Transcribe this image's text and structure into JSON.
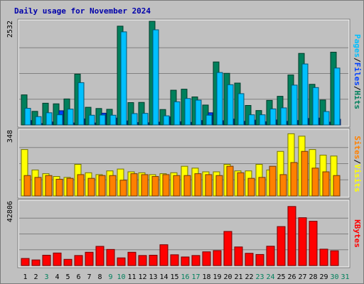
{
  "title": "Daily usage for November 2024",
  "colors": {
    "background": "#c0c0c0",
    "hits": "#00805c",
    "files": "#00c0ff",
    "pages": "#0040ff",
    "visits": "#ffff00",
    "sites": "#ff8000",
    "kbytes": "#ff0000",
    "weekend_label": "#00805c",
    "weekday_label": "#000000"
  },
  "chart_data": [
    {
      "type": "bar",
      "panel": "top",
      "ymax_label": "2532",
      "ylim": [
        0,
        2532
      ],
      "grid": true,
      "legend": [
        {
          "label": "Pages",
          "color": "#00c0ff"
        },
        {
          "label": "Files",
          "color": "#0040ff"
        },
        {
          "label": "Hits",
          "color": "#00805c"
        }
      ],
      "legend_separator": "/",
      "categories": [
        "1",
        "2",
        "3",
        "4",
        "5",
        "6",
        "7",
        "8",
        "9",
        "10",
        "11",
        "12",
        "13",
        "14",
        "15",
        "16",
        "17",
        "18",
        "19",
        "20",
        "21",
        "22",
        "23",
        "24",
        "25",
        "26",
        "27",
        "28",
        "29",
        "30",
        "31"
      ],
      "series": [
        {
          "name": "Hits",
          "color": "#00805c",
          "values": [
            740,
            335,
            535,
            520,
            640,
            1250,
            435,
            405,
            385,
            2430,
            550,
            555,
            2550,
            380,
            855,
            880,
            690,
            490,
            1550,
            1270,
            1030,
            480,
            355,
            605,
            705,
            1230,
            1760,
            1000,
            615,
            1790,
            0
          ]
        },
        {
          "name": "Files",
          "color": "#00c0ff",
          "values": [
            410,
            205,
            300,
            250,
            390,
            1040,
            240,
            245,
            240,
            2290,
            280,
            285,
            2340,
            225,
            570,
            650,
            610,
            240,
            1290,
            990,
            770,
            250,
            250,
            395,
            420,
            980,
            1500,
            920,
            330,
            1400,
            0
          ]
        },
        {
          "name": "Pages",
          "color": "#0040ff",
          "values": [
            110,
            35,
            75,
            350,
            50,
            150,
            50,
            290,
            170,
            100,
            60,
            55,
            70,
            200,
            80,
            65,
            110,
            300,
            105,
            145,
            90,
            120,
            80,
            125,
            90,
            110,
            160,
            170,
            70,
            140,
            0
          ]
        }
      ]
    },
    {
      "type": "bar",
      "panel": "middle",
      "ymax_label": "348",
      "ylim": [
        0,
        348
      ],
      "grid": true,
      "legend": [
        {
          "label": "Sites",
          "color": "#ff8000"
        },
        {
          "label": "Visits",
          "color": "#ffff00"
        }
      ],
      "legend_separator": "/",
      "categories": [
        "1",
        "2",
        "3",
        "4",
        "5",
        "6",
        "7",
        "8",
        "9",
        "10",
        "11",
        "12",
        "13",
        "14",
        "15",
        "16",
        "17",
        "18",
        "19",
        "20",
        "21",
        "22",
        "23",
        "24",
        "25",
        "26",
        "27",
        "28",
        "29",
        "30",
        "31"
      ],
      "series": [
        {
          "name": "Visits",
          "color": "#ffff00",
          "values": [
            250,
            140,
            120,
            105,
            100,
            170,
            125,
            115,
            135,
            145,
            130,
            125,
            115,
            120,
            125,
            160,
            150,
            130,
            130,
            170,
            135,
            135,
            170,
            140,
            240,
            335,
            322,
            250,
            220,
            215,
            0
          ]
        },
        {
          "name": "Sites",
          "color": "#ff8000",
          "values": [
            110,
            100,
            110,
            90,
            95,
            115,
            95,
            110,
            110,
            85,
            120,
            115,
            105,
            115,
            110,
            110,
            120,
            115,
            110,
            160,
            125,
            95,
            100,
            160,
            115,
            180,
            240,
            150,
            130,
            110,
            0
          ]
        }
      ]
    },
    {
      "type": "bar",
      "panel": "bottom",
      "ymax_label": "42806",
      "ylim": [
        0,
        42806
      ],
      "grid": true,
      "legend": [
        {
          "label": "KBytes",
          "color": "#ff0000"
        }
      ],
      "categories": [
        "1",
        "2",
        "3",
        "4",
        "5",
        "6",
        "7",
        "8",
        "9",
        "10",
        "11",
        "12",
        "13",
        "14",
        "15",
        "16",
        "17",
        "18",
        "19",
        "20",
        "21",
        "22",
        "23",
        "24",
        "25",
        "26",
        "27",
        "28",
        "29",
        "30",
        "31"
      ],
      "series": [
        {
          "name": "KBytes",
          "color": "#ff0000",
          "values": [
            4800,
            3800,
            7000,
            8500,
            4200,
            6800,
            9000,
            13000,
            10900,
            5200,
            9000,
            6800,
            7000,
            14100,
            7300,
            5800,
            6800,
            9300,
            10100,
            23100,
            12600,
            8300,
            7500,
            13100,
            26400,
            40000,
            32400,
            30000,
            11100,
            10000,
            0
          ]
        }
      ]
    }
  ],
  "x_labels": [
    {
      "label": "1",
      "weekend": false
    },
    {
      "label": "2",
      "weekend": false
    },
    {
      "label": "3",
      "weekend": true
    },
    {
      "label": "4",
      "weekend": false
    },
    {
      "label": "5",
      "weekend": false
    },
    {
      "label": "6",
      "weekend": false
    },
    {
      "label": "7",
      "weekend": false
    },
    {
      "label": "8",
      "weekend": false
    },
    {
      "label": "9",
      "weekend": true
    },
    {
      "label": "10",
      "weekend": true
    },
    {
      "label": "11",
      "weekend": false
    },
    {
      "label": "12",
      "weekend": false
    },
    {
      "label": "13",
      "weekend": false
    },
    {
      "label": "14",
      "weekend": false
    },
    {
      "label": "15",
      "weekend": false
    },
    {
      "label": "16",
      "weekend": true
    },
    {
      "label": "17",
      "weekend": true
    },
    {
      "label": "18",
      "weekend": false
    },
    {
      "label": "19",
      "weekend": false
    },
    {
      "label": "20",
      "weekend": false
    },
    {
      "label": "21",
      "weekend": false
    },
    {
      "label": "22",
      "weekend": false
    },
    {
      "label": "23",
      "weekend": true
    },
    {
      "label": "24",
      "weekend": true
    },
    {
      "label": "25",
      "weekend": false
    },
    {
      "label": "26",
      "weekend": false
    },
    {
      "label": "27",
      "weekend": false
    },
    {
      "label": "28",
      "weekend": false
    },
    {
      "label": "29",
      "weekend": false
    },
    {
      "label": "30",
      "weekend": true
    },
    {
      "label": "31",
      "weekend": true
    }
  ]
}
